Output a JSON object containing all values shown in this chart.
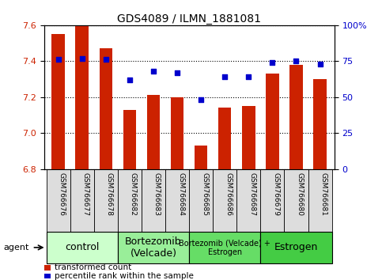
{
  "title": "GDS4089 / ILMN_1881081",
  "samples": [
    "GSM766676",
    "GSM766677",
    "GSM766678",
    "GSM766682",
    "GSM766683",
    "GSM766684",
    "GSM766685",
    "GSM766686",
    "GSM766687",
    "GSM766679",
    "GSM766680",
    "GSM766681"
  ],
  "bar_values": [
    7.55,
    7.6,
    7.47,
    7.13,
    7.21,
    7.2,
    6.93,
    7.14,
    7.15,
    7.33,
    7.38,
    7.3
  ],
  "scatter_values": [
    76,
    77,
    76,
    62,
    68,
    67,
    48,
    64,
    64,
    74,
    75,
    73
  ],
  "ylim_left": [
    6.8,
    7.6
  ],
  "ylim_right": [
    0,
    100
  ],
  "yticks_left": [
    6.8,
    7.0,
    7.2,
    7.4,
    7.6
  ],
  "yticks_right": [
    0,
    25,
    50,
    75,
    100
  ],
  "bar_color": "#cc2200",
  "scatter_color": "#0000cc",
  "bar_bottom": 6.8,
  "groups": [
    {
      "label": "control",
      "start": 0,
      "end": 3,
      "color": "#ccffcc",
      "fontsize": 9
    },
    {
      "label": "Bortezomib\n(Velcade)",
      "start": 3,
      "end": 6,
      "color": "#99ee99",
      "fontsize": 9
    },
    {
      "label": "Bortezomib (Velcade) +\nEstrogen",
      "start": 6,
      "end": 9,
      "color": "#66dd66",
      "fontsize": 7
    },
    {
      "label": "Estrogen",
      "start": 9,
      "end": 12,
      "color": "#44cc44",
      "fontsize": 9
    }
  ],
  "agent_label": "agent",
  "legend_bar_label": "transformed count",
  "legend_scatter_label": "percentile rank within the sample",
  "background_color": "#ffffff",
  "plot_bg_color": "#ffffff",
  "grid_color": "#000000",
  "tick_bg_color": "#dddddd"
}
